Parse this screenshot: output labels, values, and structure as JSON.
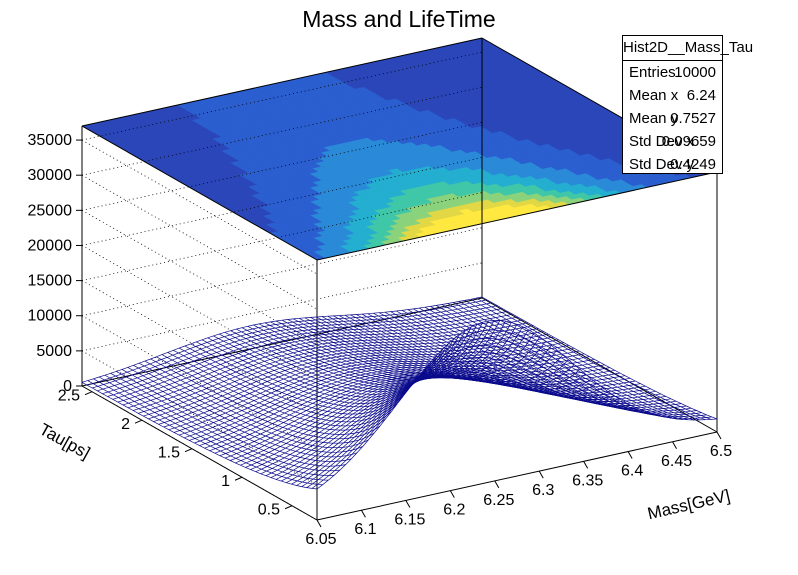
{
  "chart_data": {
    "type": "surface",
    "title": "Mass and LifeTime",
    "xlabel": "Mass[GeV]",
    "ylabel": "Tau[ps]",
    "zlabel": "",
    "xlim": [
      6.05,
      6.5
    ],
    "ylim": [
      0.25,
      2.6
    ],
    "zlim": [
      0,
      37000
    ],
    "x_ticks": [
      "6.05",
      "6.1",
      "6.15",
      "6.2",
      "6.25",
      "6.3",
      "6.35",
      "6.4",
      "6.45",
      "6.5"
    ],
    "y_ticks": [
      "0.5",
      "1",
      "1.5",
      "2",
      "2.5"
    ],
    "z_ticks": [
      "0",
      "5000",
      "10000",
      "15000",
      "20000",
      "25000",
      "30000",
      "35000"
    ],
    "peak": {
      "x": 6.24,
      "y": 0.3,
      "z": 20000
    },
    "mean_x": 6.24,
    "sigma_x": 0.09659,
    "decay_tau": 0.75,
    "surface_color": "#0a0a8c",
    "top_projection": "colz",
    "grid": true,
    "legend_position": "top-right"
  },
  "stats": {
    "name": "Hist2D__Mass_Tau",
    "rows": [
      {
        "label": "Entries",
        "value": "10000"
      },
      {
        "label": "Mean x",
        "value": "6.24"
      },
      {
        "label": "Mean y",
        "value": "0.7527"
      },
      {
        "label": "Std Dev x",
        "value": "0.09659"
      },
      {
        "label": "Std Dev y",
        "value": "0.4249"
      }
    ]
  }
}
